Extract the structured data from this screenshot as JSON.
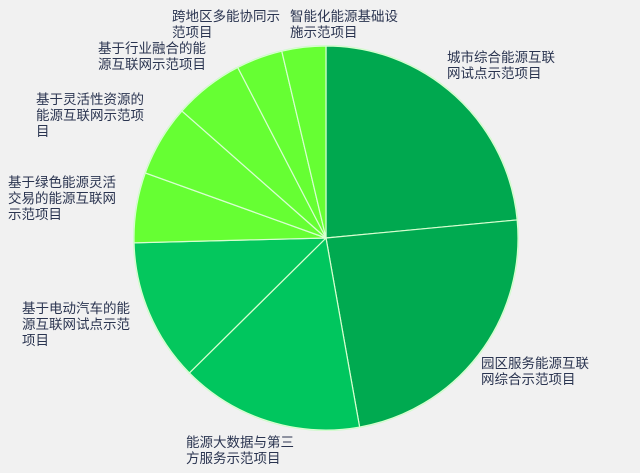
{
  "chart_data": {
    "type": "pie",
    "unit": "percent (estimated from slice angles)",
    "start": "12 o'clock, clockwise",
    "slices": [
      {
        "label": "城市综合能源互联\n网试点示范项目",
        "value": 23.5,
        "color": "#00a84f"
      },
      {
        "label": "园区服务能源互联\n网综合示范项目",
        "value": 23.7,
        "color": "#00aa50"
      },
      {
        "label": "能源大数据与第三\n方服务示范项目",
        "value": 15.4,
        "color": "#00c65e"
      },
      {
        "label": "基于电动汽车的能\n源互联网试点示范\n项目",
        "value": 12.0,
        "color": "#04c75d"
      },
      {
        "label": "基于绿色能源灵活\n交易的能源互联网\n示范项目",
        "value": 5.9,
        "color": "#66ff33"
      },
      {
        "label": "基于灵活性资源的\n能源互联网示范项\n目",
        "value": 6.0,
        "color": "#66ff33"
      },
      {
        "label": "基于行业融合的能\n源互联网示范项目",
        "value": 5.9,
        "color": "#66ff33"
      },
      {
        "label": "跨地区多能协同示\n范项目",
        "value": 3.9,
        "color": "#66ff33"
      },
      {
        "label": "智能化能源基础设\n施示范项目",
        "value": 3.7,
        "color": "#66ff33"
      }
    ],
    "legend": "none (direct labels)"
  }
}
